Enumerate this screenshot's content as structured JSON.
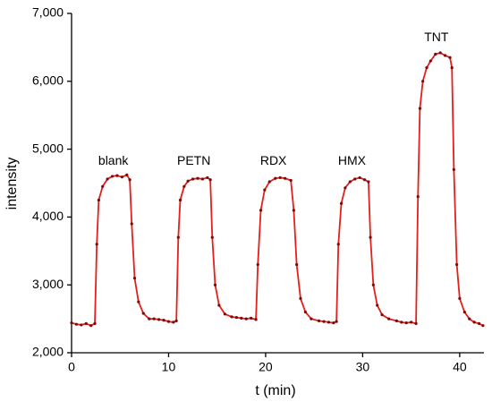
{
  "chart_data": {
    "type": "line",
    "x_label": "t (min)",
    "y_label": "intensity",
    "xlim": [
      0,
      42.5
    ],
    "ylim": [
      2000,
      7000
    ],
    "xticks": [
      0,
      10,
      20,
      30,
      40
    ],
    "yticks": [
      {
        "value": 2000,
        "label": "2,000"
      },
      {
        "value": 3000,
        "label": "3,000"
      },
      {
        "value": 4000,
        "label": "4,000"
      },
      {
        "value": 5000,
        "label": "5,000"
      },
      {
        "value": 6000,
        "label": "6,000"
      },
      {
        "value": 7000,
        "label": "7,000"
      }
    ],
    "annotations": [
      {
        "text": "blank",
        "x": 4.3,
        "y": 4820
      },
      {
        "text": "PETN",
        "x": 12.6,
        "y": 4820
      },
      {
        "text": "RDX",
        "x": 20.8,
        "y": 4820
      },
      {
        "text": "HMX",
        "x": 28.9,
        "y": 4820
      },
      {
        "text": "TNT",
        "x": 37.6,
        "y": 6640
      }
    ],
    "series": [
      {
        "name": "intensity",
        "color": "#e3201b",
        "marker_color": "#7a0a0a",
        "x": [
          0,
          0.5,
          1,
          1.5,
          2,
          2.4,
          2.6,
          2.8,
          3.2,
          3.7,
          4.2,
          4.7,
          5.2,
          5.7,
          6.0,
          6.2,
          6.5,
          6.9,
          7.4,
          8,
          8.5,
          9,
          9.5,
          10,
          10.5,
          10.8,
          11.0,
          11.2,
          11.6,
          12.0,
          12.5,
          13,
          13.5,
          14,
          14.3,
          14.5,
          14.8,
          15.2,
          15.8,
          16.5,
          17,
          17.5,
          18,
          18.5,
          19,
          19.2,
          19.5,
          19.9,
          20.4,
          21,
          21.5,
          22,
          22.6,
          22.9,
          23.2,
          23.6,
          24.1,
          24.7,
          25.5,
          26,
          26.5,
          27,
          27.3,
          27.5,
          27.8,
          28.2,
          28.7,
          29.2,
          29.7,
          30.2,
          30.6,
          30.8,
          31.1,
          31.5,
          32,
          32.7,
          33.5,
          34,
          34.5,
          35,
          35.5,
          35.7,
          35.9,
          36.2,
          36.6,
          37,
          37.5,
          38,
          38.5,
          39,
          39.2,
          39.4,
          39.7,
          40,
          40.5,
          41,
          41.5,
          42,
          42.4
        ],
        "values": [
          2440,
          2420,
          2410,
          2430,
          2400,
          2430,
          3600,
          4250,
          4450,
          4560,
          4600,
          4610,
          4590,
          4620,
          4550,
          3900,
          3100,
          2750,
          2580,
          2500,
          2500,
          2490,
          2480,
          2460,
          2450,
          2470,
          3700,
          4250,
          4450,
          4530,
          4560,
          4570,
          4560,
          4580,
          4550,
          3700,
          3000,
          2700,
          2570,
          2530,
          2520,
          2510,
          2500,
          2510,
          2490,
          3300,
          4100,
          4400,
          4520,
          4570,
          4580,
          4570,
          4540,
          4100,
          3300,
          2800,
          2600,
          2500,
          2470,
          2460,
          2450,
          2440,
          2460,
          3600,
          4200,
          4430,
          4520,
          4560,
          4580,
          4550,
          4520,
          3700,
          3000,
          2700,
          2560,
          2500,
          2470,
          2450,
          2440,
          2450,
          2430,
          4300,
          5600,
          6000,
          6200,
          6300,
          6400,
          6420,
          6380,
          6350,
          6200,
          4700,
          3300,
          2800,
          2600,
          2500,
          2450,
          2430,
          2400
        ]
      }
    ]
  }
}
